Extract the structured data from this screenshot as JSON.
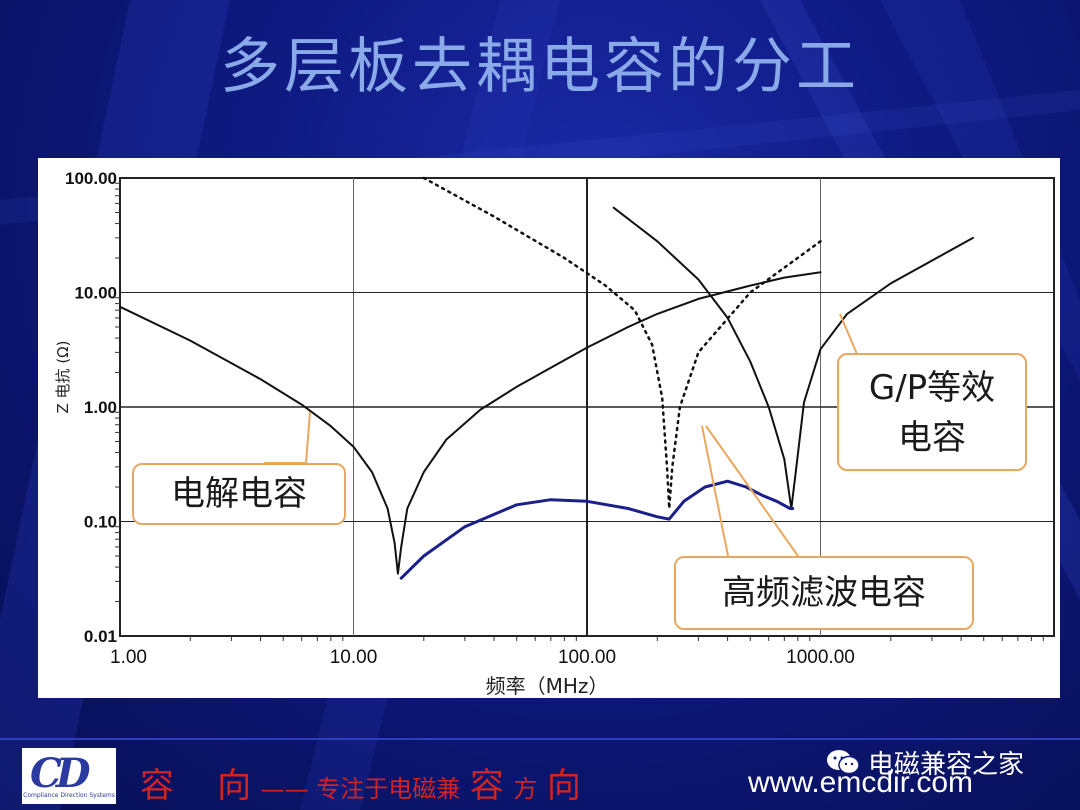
{
  "slide": {
    "title": "多层板去耦电容的分工"
  },
  "chart_data": {
    "type": "line",
    "x_scale": "log",
    "y_scale": "log",
    "xlim": [
      1,
      10000
    ],
    "ylim": [
      0.01,
      100
    ],
    "xlabel": "频率（MHz）",
    "ylabel": "Z 电抗 (Ω)",
    "x_ticks": [
      "1.00",
      "10.00",
      "100.00",
      "1000.00"
    ],
    "y_ticks": [
      "100.00",
      "10.00",
      "1.00",
      "0.10",
      "0.01"
    ],
    "grid": true,
    "series": [
      {
        "color": "#111111",
        "style": "solid",
        "x": [
          1.0,
          2.0,
          4.0,
          6.0,
          8.0,
          10.0,
          12.0,
          14.0,
          15.0,
          15.5,
          16.0,
          17.0,
          20.0,
          25.0,
          35.0,
          50.0,
          70.0,
          100.0,
          150.0,
          200.0,
          300.0,
          500.0,
          700.0,
          1000.0
        ],
        "y": [
          7.5,
          3.8,
          1.75,
          1.05,
          0.68,
          0.45,
          0.27,
          0.13,
          0.065,
          0.035,
          0.06,
          0.13,
          0.27,
          0.52,
          0.95,
          1.5,
          2.2,
          3.3,
          5.0,
          6.5,
          8.8,
          11.5,
          13.5,
          15.0
        ]
      },
      {
        "color": "#111111",
        "style": "dotted",
        "x": [
          20.0,
          40.0,
          80.0,
          120.0,
          160.0,
          190.0,
          210.0,
          220.0,
          225.0,
          232.0,
          250.0,
          300.0,
          500.0,
          1000.0
        ],
        "y": [
          100.0,
          46.0,
          20.0,
          11.5,
          7.0,
          3.5,
          1.2,
          0.3,
          0.13,
          0.3,
          1.0,
          3.0,
          10.0,
          28.0
        ]
      },
      {
        "color": "#111111",
        "style": "solid",
        "x": [
          130.0,
          200.0,
          300.0,
          400.0,
          500.0,
          600.0,
          700.0,
          750.0,
          780.0,
          850.0,
          1000.0,
          1300.0,
          2000.0,
          3000.0,
          4500.0
        ],
        "y": [
          55.0,
          28.0,
          13.0,
          6.0,
          2.5,
          1.0,
          0.35,
          0.13,
          0.25,
          1.1,
          3.2,
          6.5,
          12.0,
          19.0,
          30.0
        ]
      },
      {
        "color": "#1a1f8c",
        "style": "solid",
        "x": [
          16.0,
          20.0,
          30.0,
          50.0,
          70.0,
          100.0,
          150.0,
          200.0,
          225.0,
          260.0,
          320.0,
          400.0,
          480.0,
          560.0,
          650.0,
          740.0,
          760.0
        ],
        "y": [
          0.032,
          0.05,
          0.09,
          0.14,
          0.155,
          0.15,
          0.13,
          0.11,
          0.105,
          0.15,
          0.2,
          0.225,
          0.2,
          0.17,
          0.15,
          0.13,
          0.13
        ]
      }
    ],
    "annotations": [
      {
        "text": "电解电容"
      },
      {
        "text": "高频滤波电容"
      },
      {
        "lines": [
          "G/P等效",
          "电容"
        ]
      }
    ]
  },
  "footer": {
    "logo_text": "CD",
    "logo_caption": "Compliance Direction Systems",
    "slogan_a": "容",
    "slogan_b": "向",
    "slogan_dash": " —— ",
    "slogan_c": "专注于电磁兼",
    "slogan_d": "容",
    "slogan_e": "方",
    "slogan_f": "向",
    "wechat_label": "电磁兼容之家",
    "url": "www.emcdir.com"
  },
  "colors": {
    "background": "#0f1a82",
    "title": "#8aa9e8",
    "callout_border": "#e8a860",
    "slogan": "#d02424",
    "combined_curve": "#1a1f8c"
  }
}
